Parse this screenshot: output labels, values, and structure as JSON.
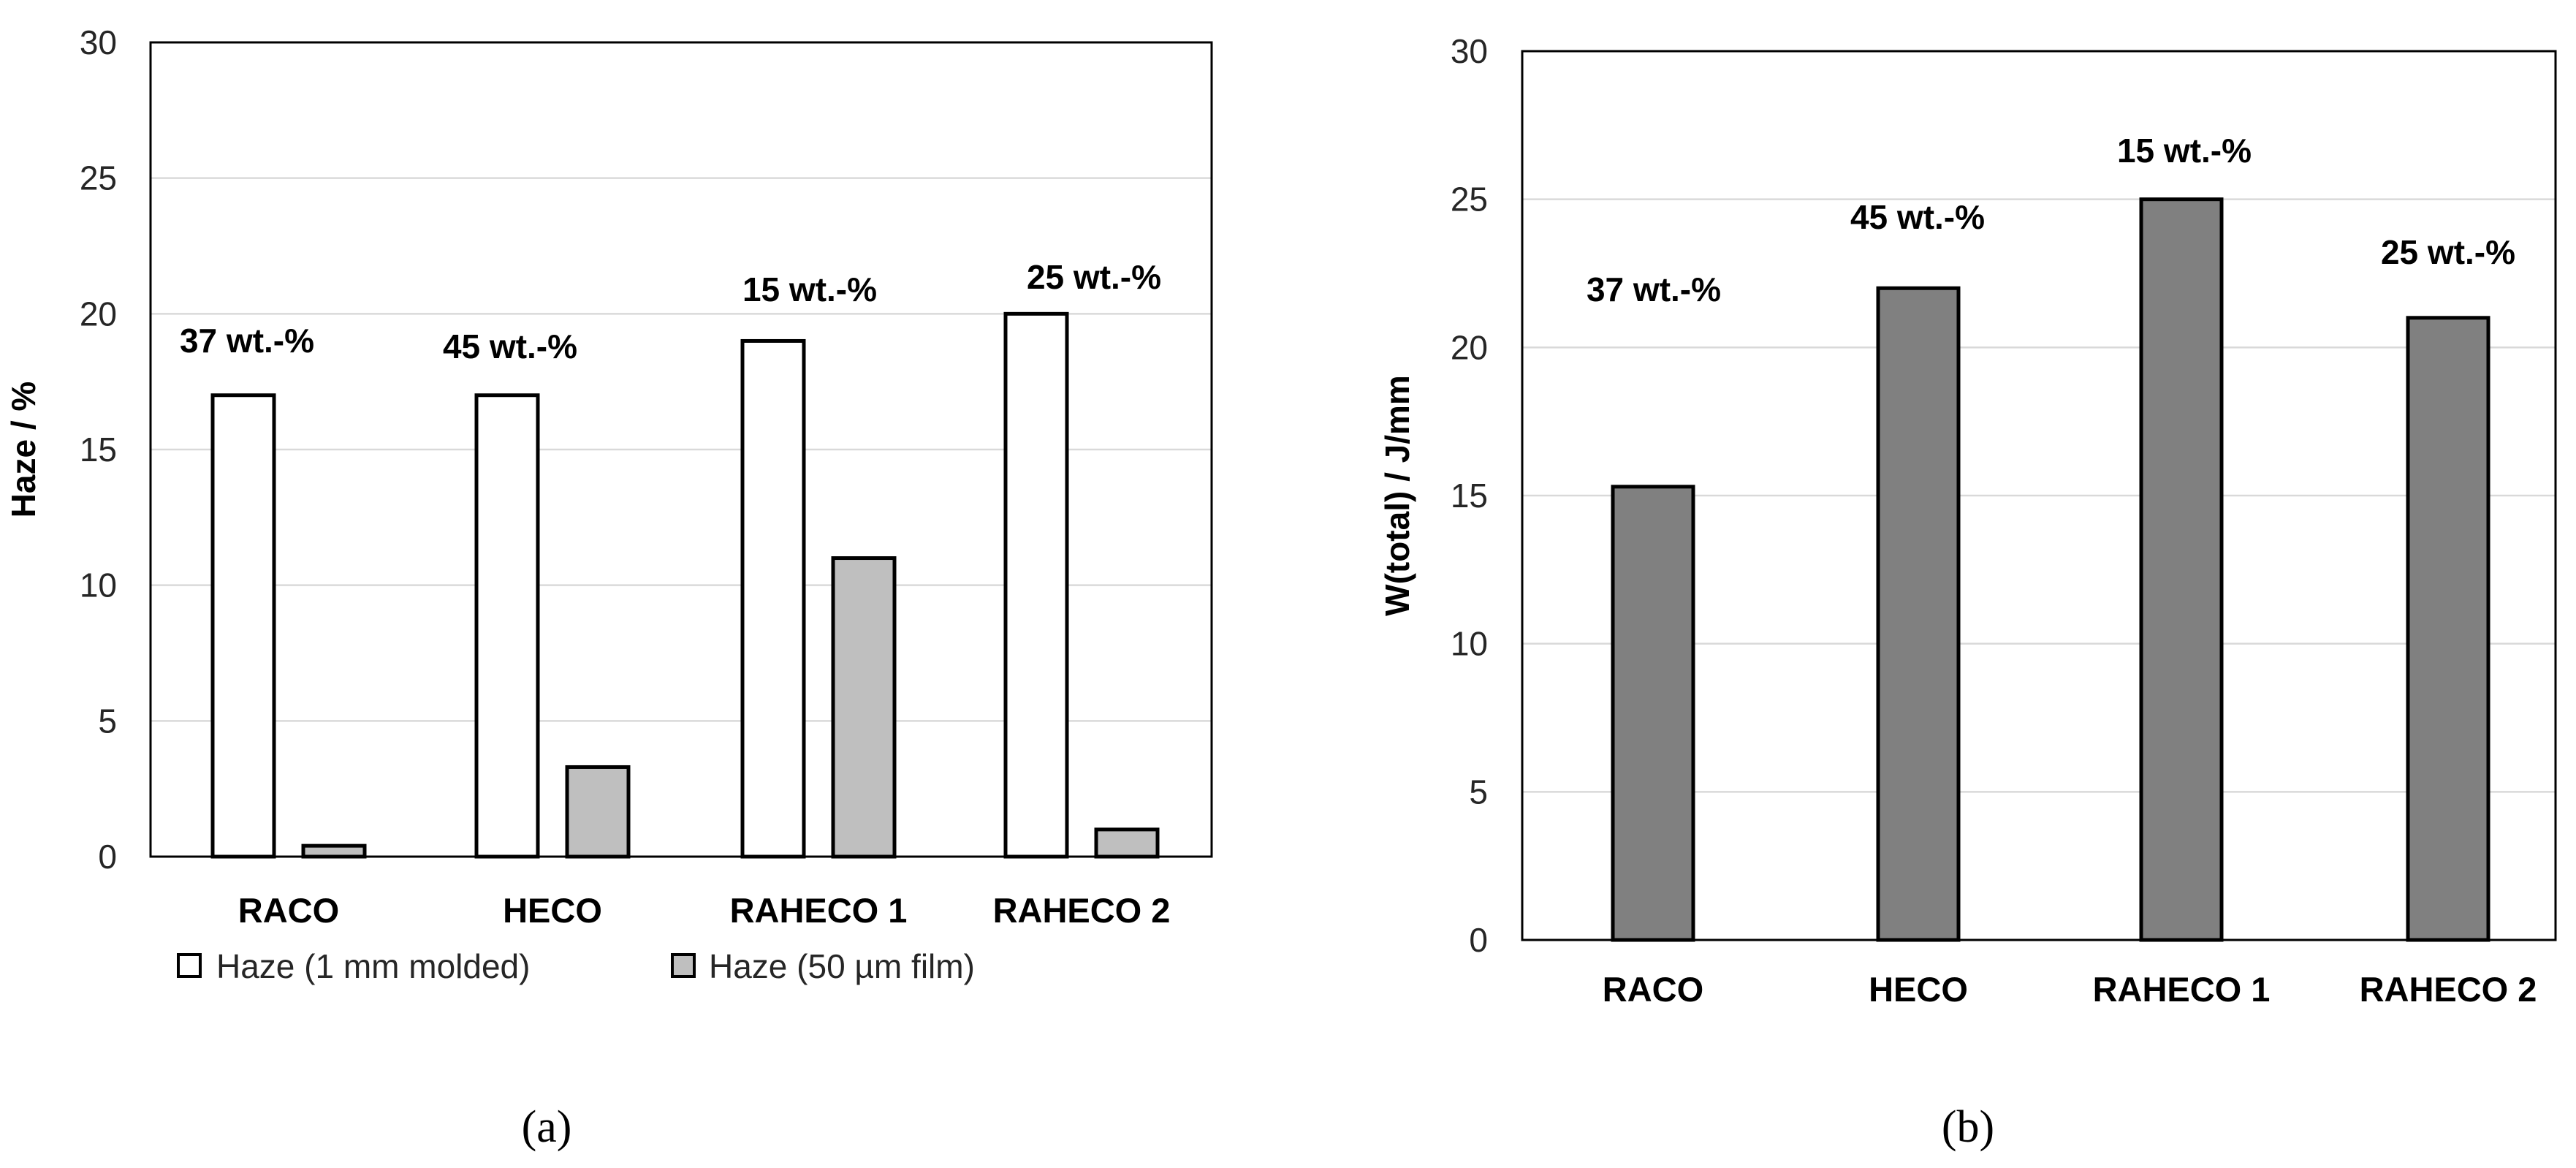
{
  "chart_data": [
    {
      "type": "bar",
      "panel_label": "(a)",
      "categories": [
        "RACO",
        "HECO",
        "RAHECO 1",
        "RAHECO 2"
      ],
      "series": [
        {
          "name": "Haze (1 mm molded)",
          "values": [
            17,
            17,
            19,
            20
          ],
          "color": "#ffffff"
        },
        {
          "name": "Haze (50 µm film)",
          "values": [
            0.4,
            3.3,
            11,
            1.0
          ],
          "color": "#bfbfbf"
        }
      ],
      "annotations": [
        "37 wt.-%",
        "45 wt.-%",
        "15 wt.-%",
        "25 wt.-%"
      ],
      "xlabel": "",
      "ylabel": "Haze / %",
      "ylim": [
        0,
        30
      ],
      "yticks": [
        0,
        5,
        10,
        15,
        20,
        25,
        30
      ],
      "grid": true,
      "legend_position": "bottom"
    },
    {
      "type": "bar",
      "panel_label": "(b)",
      "categories": [
        "RACO",
        "HECO",
        "RAHECO 1",
        "RAHECO 2"
      ],
      "series": [
        {
          "values": [
            15.3,
            22,
            25,
            21
          ],
          "color": "#808080"
        }
      ],
      "annotations": [
        "37 wt.-%",
        "45 wt.-%",
        "15 wt.-%",
        "25 wt.-%"
      ],
      "xlabel": "",
      "ylabel": "W(total) / J/mm",
      "ylim": [
        0,
        30
      ],
      "yticks": [
        0,
        5,
        10,
        15,
        20,
        25,
        30
      ],
      "grid": true
    }
  ]
}
